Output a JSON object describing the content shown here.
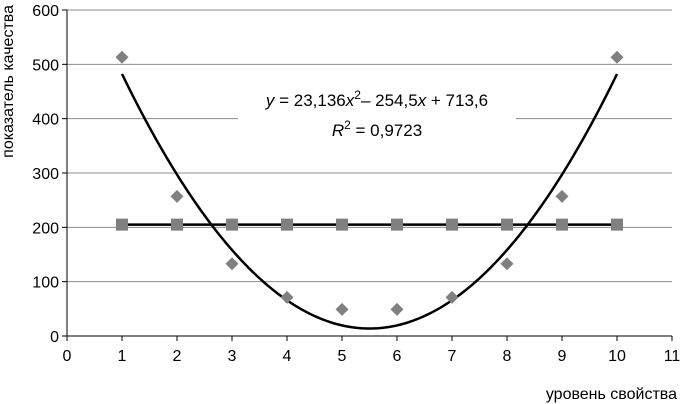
{
  "chart_data": {
    "type": "scatter",
    "xlabel": "уровень свойства",
    "ylabel": "показатель качества",
    "xlim": [
      0,
      11
    ],
    "ylim": [
      0,
      600
    ],
    "x_ticks": [
      "0",
      "1",
      "2",
      "3",
      "4",
      "5",
      "6",
      "7",
      "8",
      "9",
      "10",
      "11"
    ],
    "y_ticks": [
      "0",
      "100",
      "200",
      "300",
      "400",
      "500",
      "600"
    ],
    "grid": "horizontal",
    "series": [
      {
        "marker": "diamond",
        "color": "#808080",
        "x": [
          1,
          2,
          3,
          4,
          5,
          6,
          7,
          8,
          9,
          10
        ],
        "y": [
          513,
          257,
          133,
          71,
          49,
          49,
          71,
          133,
          257,
          513
        ]
      },
      {
        "marker": "square",
        "color": "#808080",
        "connected": true,
        "x": [
          1,
          2,
          3,
          4,
          5,
          6,
          7,
          8,
          9,
          10
        ],
        "y": [
          205,
          205,
          205,
          205,
          205,
          205,
          205,
          205,
          205,
          205
        ]
      }
    ],
    "trendline": {
      "type": "polynomial",
      "coefficients": [
        23.136,
        -254.5,
        713.6
      ],
      "x_range": [
        1,
        10
      ],
      "equation_label": {
        "y": "y",
        "rest1": " = 23,136",
        "x1": "x",
        "sup": "2",
        "rest2": "– 254,5",
        "x2": "x",
        "rest3": " + 713,6"
      },
      "r2_label": {
        "R": "R",
        "sup": "2",
        "rest": " = 0,9723"
      }
    }
  }
}
